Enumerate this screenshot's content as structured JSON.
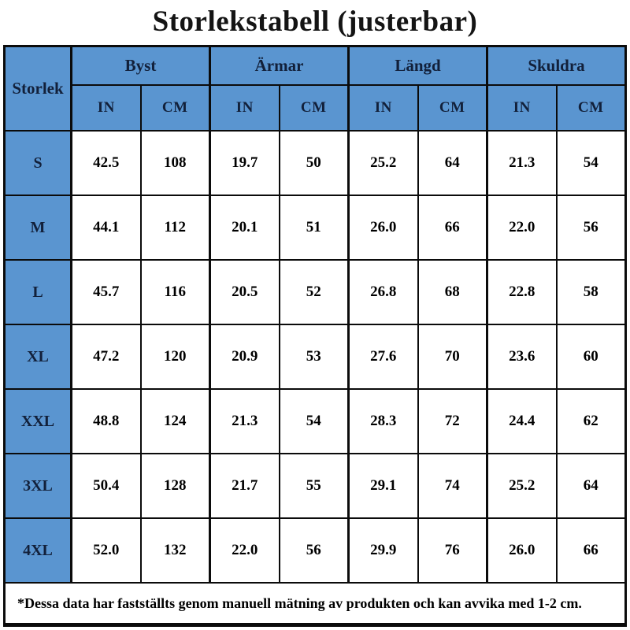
{
  "title": "Storlekstabell (justerbar)",
  "header": {
    "size_col": "Storlek",
    "groups": [
      "Byst",
      "Ärmar",
      "Längd",
      "Skuldra"
    ],
    "units": [
      "IN",
      "CM",
      "IN",
      "CM",
      "IN",
      "CM",
      "IN",
      "CM"
    ]
  },
  "footnote": "*Dessa data har fastställts genom manuell mätning av produkten och kan avvika med 1-2 cm.",
  "colors": {
    "header_blue": "#5a95d0",
    "border_black": "#0b0b0b",
    "header_text": "#12203a",
    "cell_text": "#000000",
    "background": "#ffffff"
  },
  "chart_data": {
    "type": "table",
    "title": "Storlekstabell (justerbar)",
    "columns": [
      "Storlek",
      "Byst IN",
      "Byst CM",
      "Ärmar IN",
      "Ärmar CM",
      "Längd IN",
      "Längd CM",
      "Skuldra IN",
      "Skuldra CM"
    ],
    "rows": [
      [
        "S",
        "42.5",
        "108",
        "19.7",
        "50",
        "25.2",
        "64",
        "21.3",
        "54"
      ],
      [
        "M",
        "44.1",
        "112",
        "20.1",
        "51",
        "26.0",
        "66",
        "22.0",
        "56"
      ],
      [
        "L",
        "45.7",
        "116",
        "20.5",
        "52",
        "26.8",
        "68",
        "22.8",
        "58"
      ],
      [
        "XL",
        "47.2",
        "120",
        "20.9",
        "53",
        "27.6",
        "70",
        "23.6",
        "60"
      ],
      [
        "XXL",
        "48.8",
        "124",
        "21.3",
        "54",
        "28.3",
        "72",
        "24.4",
        "62"
      ],
      [
        "3XL",
        "50.4",
        "128",
        "21.7",
        "55",
        "29.1",
        "74",
        "25.2",
        "64"
      ],
      [
        "4XL",
        "52.0",
        "132",
        "22.0",
        "56",
        "29.9",
        "76",
        "26.0",
        "66"
      ]
    ]
  }
}
